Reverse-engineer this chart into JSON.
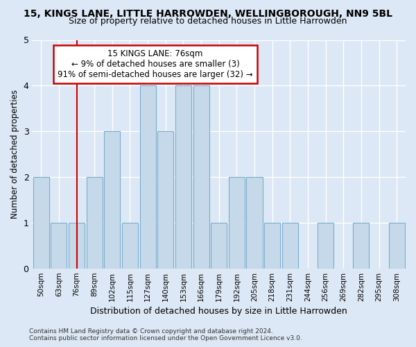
{
  "title": "15, KINGS LANE, LITTLE HARROWDEN, WELLINGBOROUGH, NN9 5BL",
  "subtitle": "Size of property relative to detached houses in Little Harrowden",
  "xlabel": "Distribution of detached houses by size in Little Harrowden",
  "ylabel": "Number of detached properties",
  "footer_line1": "Contains HM Land Registry data © Crown copyright and database right 2024.",
  "footer_line2": "Contains public sector information licensed under the Open Government Licence v3.0.",
  "annotation_line1": "15 KINGS LANE: 76sqm",
  "annotation_line2": "← 9% of detached houses are smaller (3)",
  "annotation_line3": "91% of semi-detached houses are larger (32) →",
  "categories": [
    "50sqm",
    "63sqm",
    "76sqm",
    "89sqm",
    "102sqm",
    "115sqm",
    "127sqm",
    "140sqm",
    "153sqm",
    "166sqm",
    "179sqm",
    "192sqm",
    "205sqm",
    "218sqm",
    "231sqm",
    "244sqm",
    "256sqm",
    "269sqm",
    "282sqm",
    "295sqm",
    "308sqm"
  ],
  "values": [
    2,
    1,
    1,
    2,
    3,
    1,
    4,
    3,
    4,
    4,
    1,
    2,
    2,
    1,
    1,
    0,
    1,
    0,
    1,
    0,
    1
  ],
  "bar_color": "#c5d9ea",
  "bar_edge_color": "#7aadcc",
  "red_line_index": 2,
  "ylim": [
    0,
    5
  ],
  "yticks": [
    0,
    1,
    2,
    3,
    4,
    5
  ],
  "bg_color": "#dce8f5",
  "plot_bg_color": "#dce8f5",
  "grid_color": "#ffffff",
  "title_fontsize": 10,
  "subtitle_fontsize": 9,
  "annotation_box_color": "#ffffff",
  "annotation_box_edge": "#cc0000",
  "annotation_fontsize": 8.5,
  "footer_fontsize": 6.5
}
